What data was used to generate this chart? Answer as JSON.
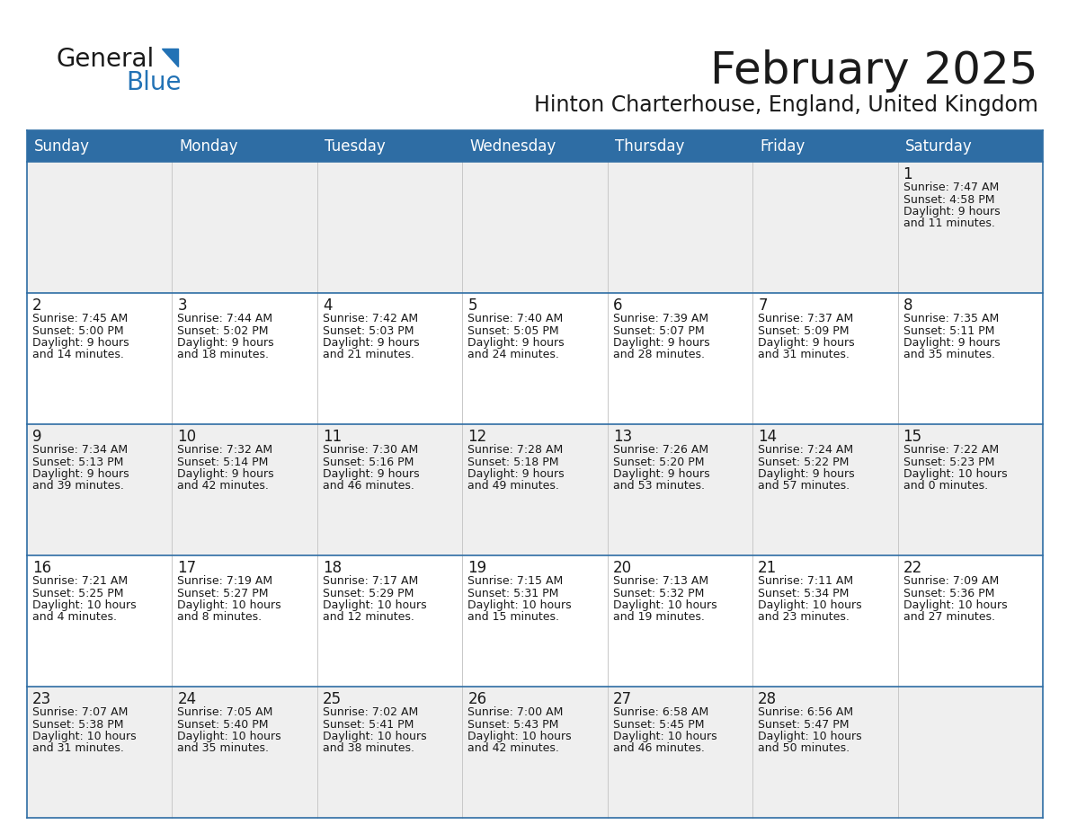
{
  "title": "February 2025",
  "subtitle": "Hinton Charterhouse, England, United Kingdom",
  "header_bg": "#2E6DA4",
  "header_text": "#FFFFFF",
  "row_bg_even": "#EFEFEF",
  "row_bg_odd": "#FFFFFF",
  "grid_line_color": "#2E6DA4",
  "col_line_color": "#C8C8C8",
  "day_headers": [
    "Sunday",
    "Monday",
    "Tuesday",
    "Wednesday",
    "Thursday",
    "Friday",
    "Saturday"
  ],
  "days": [
    {
      "day": 1,
      "col": 6,
      "row": 0,
      "sunrise": "7:47 AM",
      "sunset": "4:58 PM",
      "daylight": "9 hours and 11 minutes."
    },
    {
      "day": 2,
      "col": 0,
      "row": 1,
      "sunrise": "7:45 AM",
      "sunset": "5:00 PM",
      "daylight": "9 hours and 14 minutes."
    },
    {
      "day": 3,
      "col": 1,
      "row": 1,
      "sunrise": "7:44 AM",
      "sunset": "5:02 PM",
      "daylight": "9 hours and 18 minutes."
    },
    {
      "day": 4,
      "col": 2,
      "row": 1,
      "sunrise": "7:42 AM",
      "sunset": "5:03 PM",
      "daylight": "9 hours and 21 minutes."
    },
    {
      "day": 5,
      "col": 3,
      "row": 1,
      "sunrise": "7:40 AM",
      "sunset": "5:05 PM",
      "daylight": "9 hours and 24 minutes."
    },
    {
      "day": 6,
      "col": 4,
      "row": 1,
      "sunrise": "7:39 AM",
      "sunset": "5:07 PM",
      "daylight": "9 hours and 28 minutes."
    },
    {
      "day": 7,
      "col": 5,
      "row": 1,
      "sunrise": "7:37 AM",
      "sunset": "5:09 PM",
      "daylight": "9 hours and 31 minutes."
    },
    {
      "day": 8,
      "col": 6,
      "row": 1,
      "sunrise": "7:35 AM",
      "sunset": "5:11 PM",
      "daylight": "9 hours and 35 minutes."
    },
    {
      "day": 9,
      "col": 0,
      "row": 2,
      "sunrise": "7:34 AM",
      "sunset": "5:13 PM",
      "daylight": "9 hours and 39 minutes."
    },
    {
      "day": 10,
      "col": 1,
      "row": 2,
      "sunrise": "7:32 AM",
      "sunset": "5:14 PM",
      "daylight": "9 hours and 42 minutes."
    },
    {
      "day": 11,
      "col": 2,
      "row": 2,
      "sunrise": "7:30 AM",
      "sunset": "5:16 PM",
      "daylight": "9 hours and 46 minutes."
    },
    {
      "day": 12,
      "col": 3,
      "row": 2,
      "sunrise": "7:28 AM",
      "sunset": "5:18 PM",
      "daylight": "9 hours and 49 minutes."
    },
    {
      "day": 13,
      "col": 4,
      "row": 2,
      "sunrise": "7:26 AM",
      "sunset": "5:20 PM",
      "daylight": "9 hours and 53 minutes."
    },
    {
      "day": 14,
      "col": 5,
      "row": 2,
      "sunrise": "7:24 AM",
      "sunset": "5:22 PM",
      "daylight": "9 hours and 57 minutes."
    },
    {
      "day": 15,
      "col": 6,
      "row": 2,
      "sunrise": "7:22 AM",
      "sunset": "5:23 PM",
      "daylight": "10 hours and 0 minutes."
    },
    {
      "day": 16,
      "col": 0,
      "row": 3,
      "sunrise": "7:21 AM",
      "sunset": "5:25 PM",
      "daylight": "10 hours and 4 minutes."
    },
    {
      "day": 17,
      "col": 1,
      "row": 3,
      "sunrise": "7:19 AM",
      "sunset": "5:27 PM",
      "daylight": "10 hours and 8 minutes."
    },
    {
      "day": 18,
      "col": 2,
      "row": 3,
      "sunrise": "7:17 AM",
      "sunset": "5:29 PM",
      "daylight": "10 hours and 12 minutes."
    },
    {
      "day": 19,
      "col": 3,
      "row": 3,
      "sunrise": "7:15 AM",
      "sunset": "5:31 PM",
      "daylight": "10 hours and 15 minutes."
    },
    {
      "day": 20,
      "col": 4,
      "row": 3,
      "sunrise": "7:13 AM",
      "sunset": "5:32 PM",
      "daylight": "10 hours and 19 minutes."
    },
    {
      "day": 21,
      "col": 5,
      "row": 3,
      "sunrise": "7:11 AM",
      "sunset": "5:34 PM",
      "daylight": "10 hours and 23 minutes."
    },
    {
      "day": 22,
      "col": 6,
      "row": 3,
      "sunrise": "7:09 AM",
      "sunset": "5:36 PM",
      "daylight": "10 hours and 27 minutes."
    },
    {
      "day": 23,
      "col": 0,
      "row": 4,
      "sunrise": "7:07 AM",
      "sunset": "5:38 PM",
      "daylight": "10 hours and 31 minutes."
    },
    {
      "day": 24,
      "col": 1,
      "row": 4,
      "sunrise": "7:05 AM",
      "sunset": "5:40 PM",
      "daylight": "10 hours and 35 minutes."
    },
    {
      "day": 25,
      "col": 2,
      "row": 4,
      "sunrise": "7:02 AM",
      "sunset": "5:41 PM",
      "daylight": "10 hours and 38 minutes."
    },
    {
      "day": 26,
      "col": 3,
      "row": 4,
      "sunrise": "7:00 AM",
      "sunset": "5:43 PM",
      "daylight": "10 hours and 42 minutes."
    },
    {
      "day": 27,
      "col": 4,
      "row": 4,
      "sunrise": "6:58 AM",
      "sunset": "5:45 PM",
      "daylight": "10 hours and 46 minutes."
    },
    {
      "day": 28,
      "col": 5,
      "row": 4,
      "sunrise": "6:56 AM",
      "sunset": "5:47 PM",
      "daylight": "10 hours and 50 minutes."
    }
  ],
  "logo_color_general": "#1a1a1a",
  "logo_color_blue": "#2272B5",
  "title_font_size": 36,
  "subtitle_font_size": 17,
  "header_font_size": 12,
  "day_num_font_size": 12,
  "info_font_size": 9
}
